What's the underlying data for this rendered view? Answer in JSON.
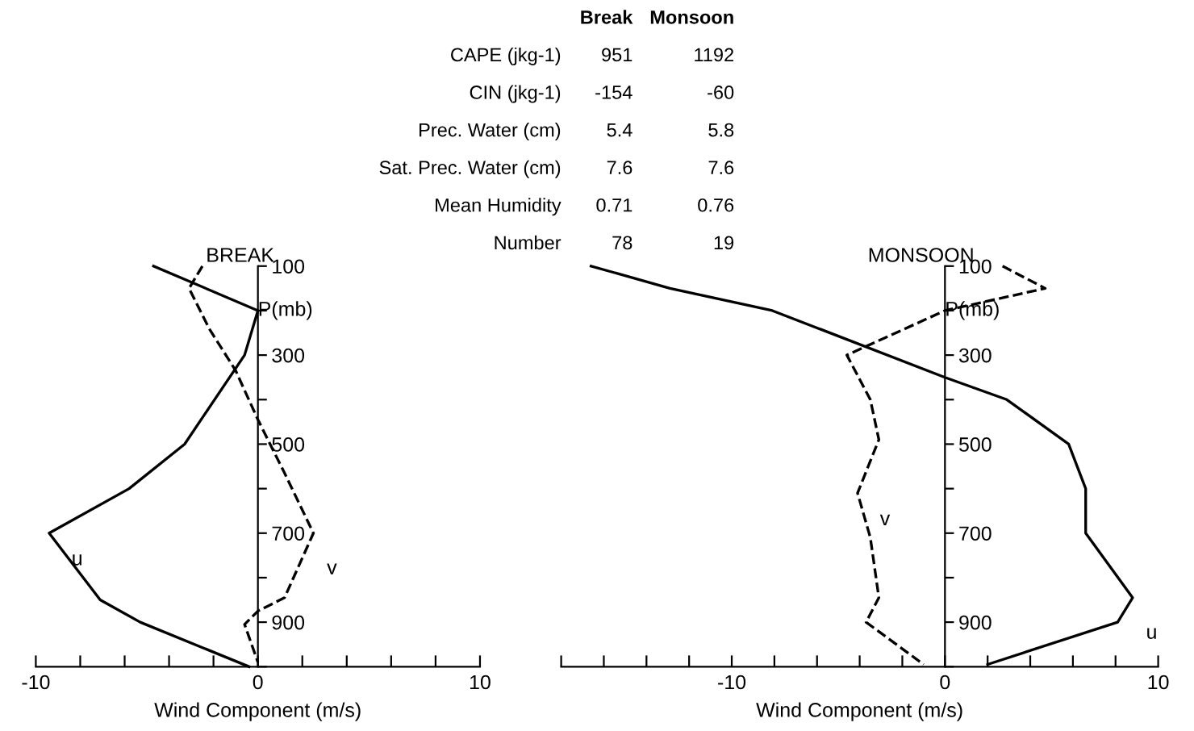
{
  "chart_data": [
    {
      "type": "line",
      "title": "BREAK",
      "xlabel": "Wind Component (m/s)",
      "ylabel": "P(mb)",
      "xlim": [
        -10,
        10
      ],
      "xticks": [
        -10,
        {
          "value": -8,
          "label": null
        },
        {
          "value": -6,
          "label": null
        },
        {
          "value": -4,
          "label": null
        },
        {
          "value": -2,
          "label": null
        },
        0,
        {
          "value": 2,
          "label": null
        },
        {
          "value": 4,
          "label": null
        },
        {
          "value": 6,
          "label": null
        },
        {
          "value": 8,
          "label": null
        },
        10
      ],
      "ylim": [
        1000,
        100
      ],
      "yticks": [
        100,
        {
          "value": 200,
          "label": null
        },
        300,
        {
          "value": 400,
          "label": null
        },
        500,
        {
          "value": 600,
          "label": null
        },
        700,
        {
          "value": 800,
          "label": null
        },
        900,
        {
          "value": 1000,
          "label": null
        }
      ],
      "series": [
        {
          "name": "u",
          "color": "#000000",
          "line_style": "solid",
          "x": [
            -4.7,
            0,
            -0.6,
            -3.3,
            -5.8,
            -9.4,
            -7.1,
            -5.3,
            -0.4
          ],
          "values": [
            100,
            200,
            300,
            500,
            600,
            700,
            850,
            900,
            1000
          ]
        },
        {
          "name": "v",
          "color": "#000000",
          "line_style": "dashed",
          "x": [
            -2.5,
            -3.1,
            -2.2,
            -1,
            0,
            1.2,
            2.5,
            1.2,
            0,
            -0.6,
            0
          ],
          "values": [
            100,
            150,
            240,
            335,
            445,
            565,
            700,
            845,
            875,
            905,
            990
          ]
        }
      ]
    },
    {
      "type": "line",
      "title": "MONSOON",
      "xlabel": "Wind Component (m/s)",
      "ylabel": "P(mb)",
      "xlim": [
        -18,
        10
      ],
      "xticks": [
        {
          "value": -18,
          "label": null
        },
        {
          "value": -16,
          "label": null
        },
        {
          "value": -14,
          "label": null
        },
        {
          "value": -12,
          "label": null
        },
        -10,
        {
          "value": -8,
          "label": null
        },
        {
          "value": -6,
          "label": null
        },
        {
          "value": -4,
          "label": null
        },
        {
          "value": -2,
          "label": null
        },
        0,
        {
          "value": 2,
          "label": null
        },
        {
          "value": 4,
          "label": null
        },
        {
          "value": 6,
          "label": null
        },
        {
          "value": 8,
          "label": null
        },
        10
      ],
      "ylim": [
        1000,
        100
      ],
      "yticks": [
        100,
        {
          "value": 200,
          "label": null
        },
        300,
        {
          "value": 400,
          "label": null
        },
        500,
        {
          "value": 600,
          "label": null
        },
        700,
        {
          "value": 800,
          "label": null
        },
        900,
        {
          "value": 1000,
          "label": null
        }
      ],
      "series": [
        {
          "name": "u",
          "color": "#000000",
          "line_style": "solid",
          "x": [
            -16.6,
            -12.9,
            -8.1,
            0,
            2.9,
            5.8,
            6.6,
            6.6,
            8.8,
            8.1,
            2.0
          ],
          "values": [
            100,
            150,
            200,
            350,
            400,
            500,
            600,
            700,
            845,
            900,
            995
          ]
        },
        {
          "name": "v",
          "color": "#000000",
          "line_style": "dashed",
          "x": [
            2.7,
            4.7,
            0,
            -4.6,
            -3.5,
            -3.1,
            -4.1,
            -3.5,
            -3.1,
            -3.7,
            -1.0
          ],
          "values": [
            100,
            150,
            200,
            300,
            400,
            490,
            610,
            710,
            845,
            900,
            995
          ]
        }
      ]
    },
    {
      "type": "other",
      "categories": [
        "Break",
        "Monsoon"
      ],
      "y_categories": [
        "CAPE (jkg-1)",
        "CIN (jkg-1)",
        "Prec. Water (cm)",
        "Sat. Prec. Water (cm)",
        "Mean Humidity",
        "Number"
      ],
      "cell_labels": [
        [
          "951",
          "1192"
        ],
        [
          "-154",
          "-60"
        ],
        [
          "5.4",
          "5.8"
        ],
        [
          "7.6",
          "7.6"
        ],
        [
          "0.71",
          "0.76"
        ],
        [
          "78",
          "19"
        ]
      ]
    }
  ]
}
